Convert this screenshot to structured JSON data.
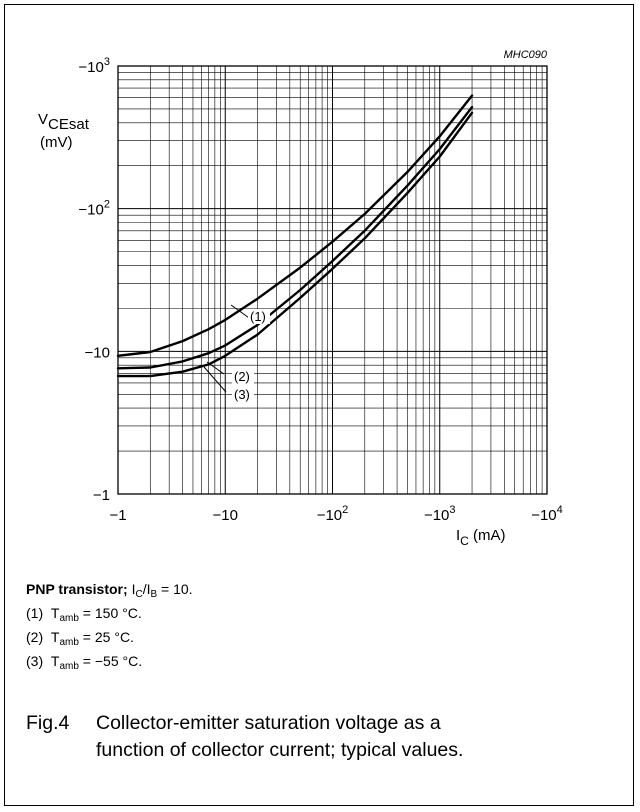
{
  "chart_data": {
    "type": "line",
    "code": "MHC090",
    "xscale": "log",
    "yscale": "log",
    "x_axis": {
      "label_main": "I",
      "label_sub": "C",
      "label_unit": "(mA)",
      "ticks": [
        {
          "value": 1,
          "base": "−1",
          "exp": ""
        },
        {
          "value": 10,
          "base": "−10",
          "exp": ""
        },
        {
          "value": 100,
          "base": "−10",
          "exp": "2"
        },
        {
          "value": 1000,
          "base": "−10",
          "exp": "3"
        },
        {
          "value": 10000,
          "base": "−10",
          "exp": "4"
        }
      ]
    },
    "y_axis": {
      "label_main": "V",
      "label_sub": "CEsat",
      "label_unit": "(mV)",
      "ticks": [
        {
          "value": 1,
          "base": "−1",
          "exp": ""
        },
        {
          "value": 10,
          "base": "−10",
          "exp": ""
        },
        {
          "value": 100,
          "base": "−10",
          "exp": "2"
        },
        {
          "value": 1000,
          "base": "−10",
          "exp": "3"
        }
      ]
    },
    "xlim": [
      1,
      10000
    ],
    "ylim": [
      1,
      1000
    ],
    "grid": true,
    "series": [
      {
        "label": "(1)",
        "x": [
          1,
          2,
          4,
          7,
          10,
          20,
          50,
          100,
          200,
          500,
          1000,
          2000
        ],
        "y": [
          9.3,
          9.9,
          11.8,
          14.3,
          16.6,
          23.4,
          38.6,
          58.7,
          91.9,
          181,
          322,
          620
        ]
      },
      {
        "label": "(2)",
        "x": [
          1,
          2,
          4,
          7,
          10,
          20,
          50,
          100,
          200,
          500,
          1000,
          2000
        ],
        "y": [
          7.6,
          7.7,
          8.5,
          9.7,
          11.0,
          15.3,
          26.9,
          43.0,
          70.2,
          145,
          262,
          515
        ]
      },
      {
        "label": "(3)",
        "x": [
          1,
          2,
          4,
          7,
          10,
          20,
          50,
          100,
          200,
          500,
          1000,
          2000
        ],
        "y": [
          6.7,
          6.7,
          7.2,
          8.1,
          9.3,
          13.1,
          23.7,
          37.9,
          62.0,
          129,
          232,
          470
        ]
      }
    ]
  },
  "legend": {
    "title_bold": "PNP transistor;",
    "ratio_i1": "I",
    "ratio_s1": "C",
    "ratio_mid": "/I",
    "ratio_s2": "B",
    "ratio_end": " = 10.",
    "items": [
      {
        "num": "(1)",
        "t": "T",
        "sub": "amb",
        "val": " = 150 °C."
      },
      {
        "num": "(2)",
        "t": "T",
        "sub": "amb",
        "val": " = 25 °C."
      },
      {
        "num": "(3)",
        "t": "T",
        "sub": "amb",
        "val": " = −55 °C."
      }
    ]
  },
  "caption": {
    "fig": "Fig.4",
    "line1": "Collector-emitter saturation voltage as a",
    "line2": "function of collector current; typical values."
  }
}
